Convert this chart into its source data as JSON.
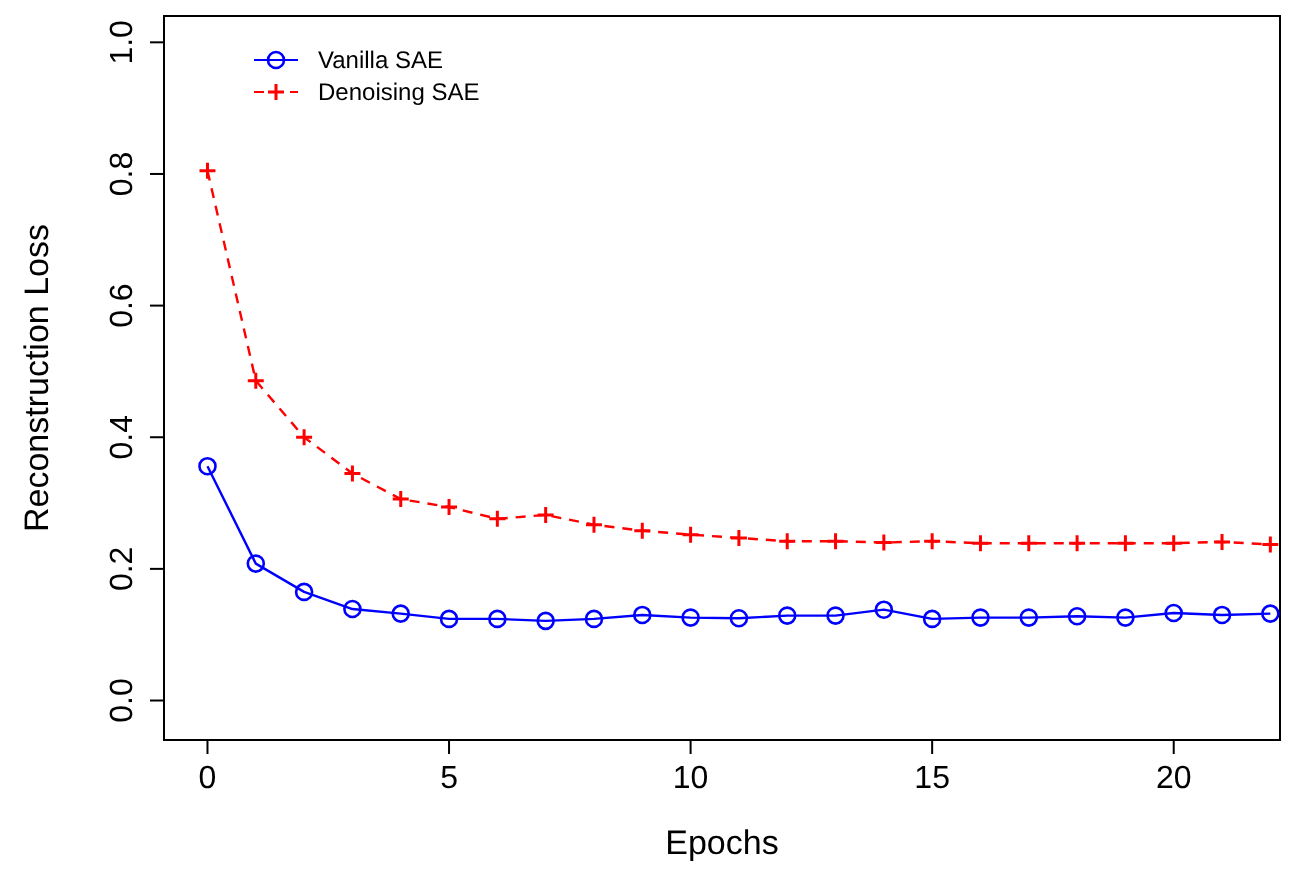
{
  "chart_data": {
    "type": "line",
    "xlabel": "Epochs",
    "ylabel": "Reconstruction Loss",
    "x": [
      0,
      1,
      2,
      3,
      4,
      5,
      6,
      7,
      8,
      9,
      10,
      11,
      12,
      13,
      14,
      15,
      16,
      17,
      18,
      19,
      20,
      21,
      22
    ],
    "series": [
      {
        "name": "Vanilla SAE",
        "color": "#0000ff",
        "marker": "circle",
        "line_style": "solid",
        "values": [
          0.356,
          0.208,
          0.165,
          0.139,
          0.132,
          0.124,
          0.124,
          0.121,
          0.124,
          0.13,
          0.126,
          0.125,
          0.129,
          0.129,
          0.138,
          0.124,
          0.126,
          0.126,
          0.128,
          0.126,
          0.133,
          0.13,
          0.132
        ]
      },
      {
        "name": "Denoising SAE",
        "color": "#ff0000",
        "marker": "cross",
        "line_style": "dashed",
        "values": [
          0.805,
          0.486,
          0.4,
          0.345,
          0.306,
          0.294,
          0.276,
          0.282,
          0.267,
          0.258,
          0.252,
          0.247,
          0.242,
          0.242,
          0.24,
          0.242,
          0.239,
          0.239,
          0.239,
          0.239,
          0.239,
          0.241,
          0.237
        ]
      }
    ],
    "xlim": [
      -0.9,
      22.2
    ],
    "ylim": [
      -0.06,
      1.04
    ],
    "xticks": [
      0,
      5,
      10,
      15,
      20
    ],
    "yticks": [
      {
        "value": 0,
        "label": "0.0"
      },
      {
        "value": 0.2,
        "label": "0.2"
      },
      {
        "value": 0.4,
        "label": "0.4"
      },
      {
        "value": 0.6,
        "label": "0.6"
      },
      {
        "value": 0.8,
        "label": "0.8"
      },
      {
        "value": 1,
        "label": "1.0"
      }
    ],
    "legend": "top left",
    "grid": false
  }
}
